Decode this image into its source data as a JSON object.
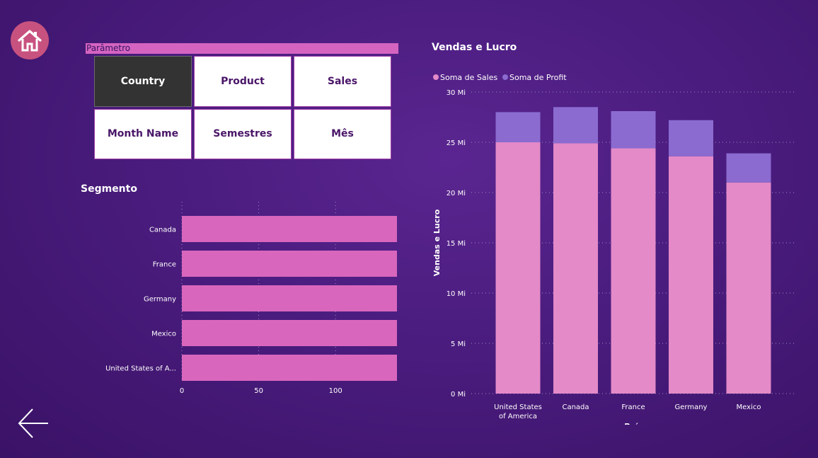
{
  "nav": {
    "home_icon": "home-icon",
    "back_icon": "arrow-left-icon"
  },
  "parameter": {
    "title": "Parâmetro",
    "options": [
      {
        "label": "Country",
        "selected": true
      },
      {
        "label": "Product",
        "selected": false
      },
      {
        "label": "Sales",
        "selected": false
      },
      {
        "label": "Month Name",
        "selected": false
      },
      {
        "label": "Semestres",
        "selected": false
      },
      {
        "label": "Mês",
        "selected": false
      }
    ]
  },
  "segmento": {
    "title": "Segmento"
  },
  "vendas": {
    "title": "Vendas e Lucro"
  },
  "colors": {
    "segment_bar": "#d966bd",
    "sales": "#e48ac8",
    "profit": "#8b6bd0"
  },
  "chart_data": [
    {
      "type": "bar",
      "orientation": "horizontal",
      "title": "Segmento",
      "categories": [
        "Canada",
        "France",
        "Germany",
        "Mexico",
        "United States of A..."
      ],
      "values": [
        140,
        140,
        140,
        140,
        140
      ],
      "xlim": [
        0,
        140
      ],
      "xticks": [
        "0",
        "50",
        "100"
      ],
      "xtick_values": [
        0,
        50,
        100
      ],
      "grid": true
    },
    {
      "type": "bar",
      "stacked": true,
      "title": "Vendas e Lucro",
      "xlabel": "País",
      "ylabel": "Vendas e Lucro",
      "categories": [
        "United States of America",
        "Canada",
        "France",
        "Germany",
        "Mexico"
      ],
      "category_lines": [
        [
          "United States",
          "of America"
        ],
        [
          "Canada"
        ],
        [
          "France"
        ],
        [
          "Germany"
        ],
        [
          "Mexico"
        ]
      ],
      "series": [
        {
          "name": "Soma de  Sales",
          "values": [
            25.0,
            24.9,
            24.4,
            23.6,
            21.0
          ]
        },
        {
          "name": "Soma de Profit",
          "values": [
            3.0,
            3.6,
            3.7,
            3.6,
            2.9
          ]
        }
      ],
      "ylim": [
        0,
        30
      ],
      "yticks": [
        "0 Mi",
        "5 Mi",
        "10 Mi",
        "15 Mi",
        "20 Mi",
        "25 Mi",
        "30 Mi"
      ],
      "ytick_values": [
        0,
        5,
        10,
        15,
        20,
        25,
        30
      ],
      "legend": "top-left",
      "grid": true
    }
  ]
}
